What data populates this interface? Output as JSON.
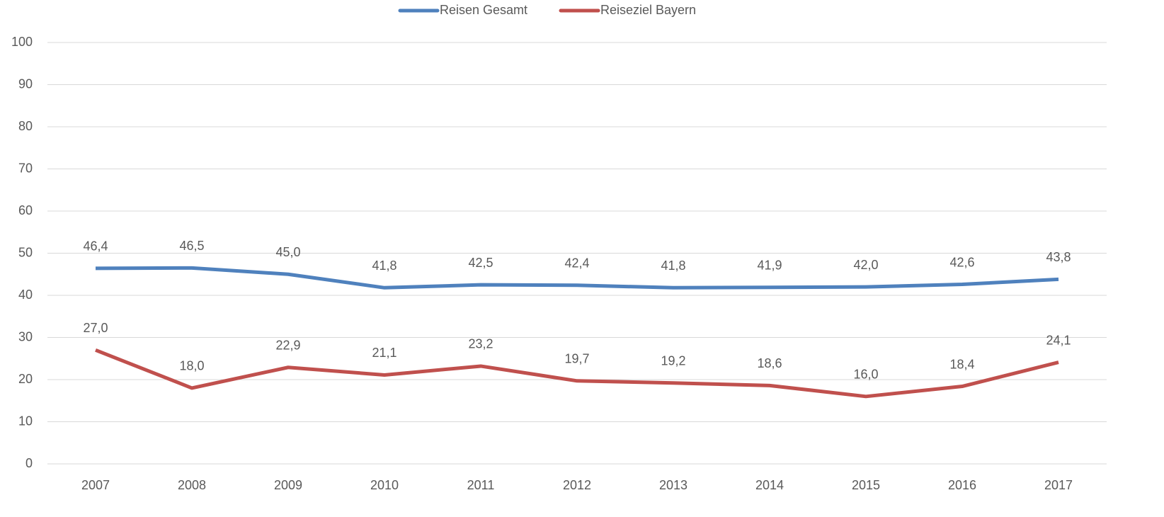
{
  "chart_data": {
    "type": "line",
    "categories": [
      "2007",
      "2008",
      "2009",
      "2010",
      "2011",
      "2012",
      "2013",
      "2014",
      "2015",
      "2016",
      "2017"
    ],
    "series": [
      {
        "name": "Reisen Gesamt",
        "color": "#4f81bd",
        "values": [
          46.4,
          46.5,
          45.0,
          41.8,
          42.5,
          42.4,
          41.8,
          41.9,
          42.0,
          42.6,
          43.8
        ],
        "value_labels": [
          "46,4",
          "46,5",
          "45,0",
          "41,8",
          "42,5",
          "42,4",
          "41,8",
          "41,9",
          "42,0",
          "42,6",
          "43,8"
        ]
      },
      {
        "name": "Reiseziel Bayern",
        "color": "#c0504d",
        "values": [
          27.0,
          18.0,
          22.9,
          21.1,
          23.2,
          19.7,
          19.2,
          18.6,
          16.0,
          18.4,
          24.1
        ],
        "value_labels": [
          "27,0",
          "18,0",
          "22,9",
          "21,1",
          "23,2",
          "19,7",
          "19,2",
          "18,6",
          "16,0",
          "18,4",
          "24,1"
        ]
      }
    ],
    "ylim": [
      0,
      100
    ],
    "yticks": [
      0,
      10,
      20,
      30,
      40,
      50,
      60,
      70,
      80,
      90,
      100
    ],
    "grid": true,
    "legend": "top"
  }
}
